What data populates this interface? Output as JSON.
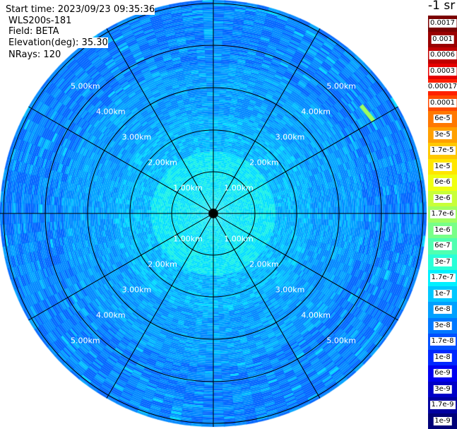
{
  "info": {
    "start_time": "Start time: 2023/09/23 09:35:36",
    "instrument": "WLS200s-181",
    "field": "Field: BETA",
    "elevation": "Elevation(deg): 35.30",
    "nrays": "NRays: 120"
  },
  "colorbar": {
    "unit": "-1 sr",
    "labels": [
      "0.0017",
      "0.001",
      "0.0006",
      "0.0003",
      "0.00017",
      "0.0001",
      "6e-5",
      "3e-5",
      "1.7e-5",
      "1e-5",
      "6e-6",
      "3e-6",
      "1.7e-6",
      "1e-6",
      "6e-7",
      "3e-7",
      "1.7e-7",
      "1e-7",
      "6e-8",
      "3e-8",
      "1.7e-8",
      "1e-8",
      "6e-9",
      "3e-9",
      "1.7e-9",
      "1e-9"
    ],
    "colors": [
      "#7a0000",
      "#990000",
      "#c00000",
      "#e60000",
      "#ff2000",
      "#ff4a00",
      "#ff7800",
      "#ffa000",
      "#ffc800",
      "#ffe600",
      "#f0ff10",
      "#c8ff38",
      "#a0ff60",
      "#78ff88",
      "#50ffb0",
      "#28ffd8",
      "#00f0ff",
      "#00c8ff",
      "#00a0ff",
      "#0078ff",
      "#0050ff",
      "#0028ff",
      "#0000f0",
      "#0000c8",
      "#0000a0",
      "#000078"
    ]
  },
  "range_rings": [
    "1.00km",
    "2.00km",
    "3.00km",
    "4.00km",
    "5.00km"
  ]
}
